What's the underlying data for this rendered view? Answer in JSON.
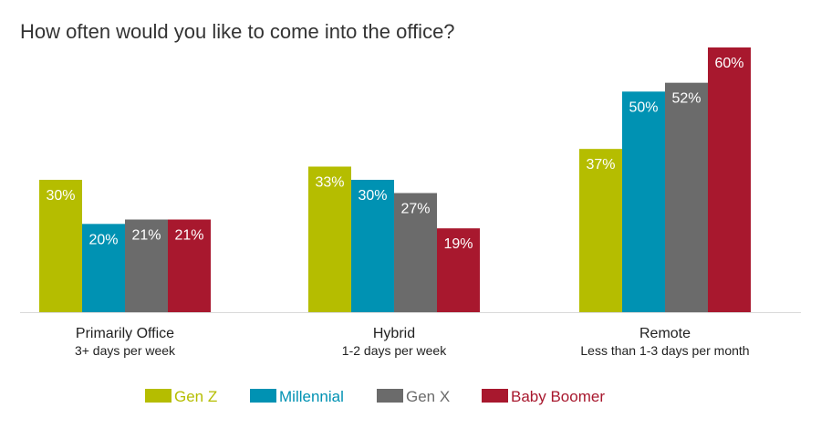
{
  "chart_data": {
    "type": "bar",
    "title": "How often would you like to come into the office?",
    "categories": [
      {
        "label": "Primarily Office",
        "sublabel": "3+ days per week"
      },
      {
        "label": "Hybrid",
        "sublabel": "1-2 days per week"
      },
      {
        "label": "Remote",
        "sublabel": "Less than 1-3 days per month"
      }
    ],
    "series": [
      {
        "name": "Gen Z",
        "color": "#b5bd00",
        "values": [
          30,
          33,
          37
        ],
        "labels": [
          "30%",
          "33%",
          "37%"
        ]
      },
      {
        "name": "Millennial",
        "color": "#0092b3",
        "values": [
          20,
          30,
          50
        ],
        "labels": [
          "20%",
          "30%",
          "50%"
        ]
      },
      {
        "name": "Gen X",
        "color": "#6b6b6b",
        "values": [
          21,
          27,
          52
        ],
        "labels": [
          "21%",
          "27%",
          "52%"
        ]
      },
      {
        "name": "Baby Boomer",
        "color": "#a8182e",
        "values": [
          21,
          19,
          60
        ],
        "labels": [
          "21%",
          "19%",
          "60%"
        ]
      }
    ],
    "ylim": [
      0,
      60
    ],
    "grid": false,
    "legend_position": "bottom"
  }
}
